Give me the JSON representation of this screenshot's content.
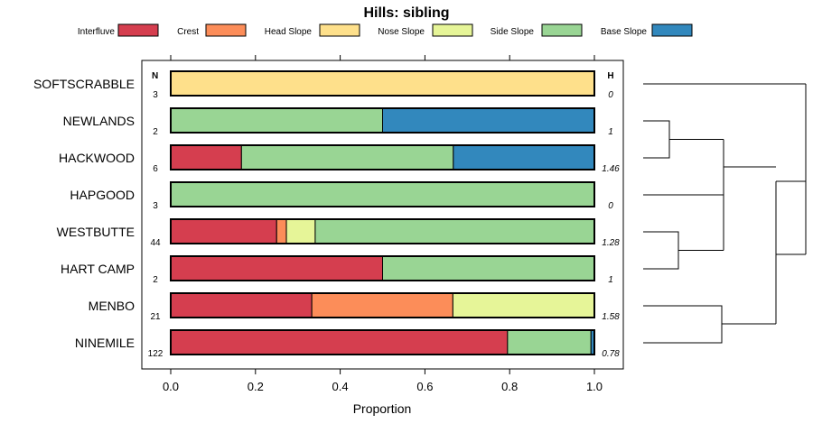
{
  "chart_data": {
    "type": "bar",
    "orientation": "horizontal",
    "stacked": true,
    "title": "Hills: sibling",
    "xlabel": "Proportion",
    "ylabel": "",
    "xlim": [
      0,
      1
    ],
    "xticks": [
      0.0,
      0.2,
      0.4,
      0.6,
      0.8,
      1.0
    ],
    "xtick_labels": [
      "0.0",
      "0.2",
      "0.4",
      "0.6",
      "0.8",
      "1.0"
    ],
    "n_header": "N",
    "h_header": "H",
    "legend_position": "top",
    "legend": [
      {
        "name": "Interfluve",
        "color": "#D53E4F"
      },
      {
        "name": "Crest",
        "color": "#FC8D59"
      },
      {
        "name": "Head Slope",
        "color": "#FEE08B"
      },
      {
        "name": "Nose Slope",
        "color": "#E6F598"
      },
      {
        "name": "Side Slope",
        "color": "#99D594"
      },
      {
        "name": "Base Slope",
        "color": "#3288BD"
      }
    ],
    "categories": [
      "SOFTSCRABBLE",
      "NEWLANDS",
      "HACKWOOD",
      "HAPGOOD",
      "WESTBUTTE",
      "HART CAMP",
      "MENBO",
      "NINEMILE"
    ],
    "n": [
      "3",
      "2",
      "6",
      "3",
      "44",
      "2",
      "21",
      "122"
    ],
    "h": [
      "0",
      "1",
      "1.46",
      "0",
      "1.28",
      "1",
      "1.58",
      "0.78"
    ],
    "series": [
      {
        "name": "Interfluve",
        "values": [
          0,
          0,
          0.167,
          0,
          0.25,
          0.5,
          0.333,
          0.795
        ]
      },
      {
        "name": "Crest",
        "values": [
          0,
          0,
          0,
          0,
          0.023,
          0,
          0.333,
          0
        ]
      },
      {
        "name": "Head Slope",
        "values": [
          1.0,
          0,
          0,
          0,
          0,
          0,
          0,
          0
        ]
      },
      {
        "name": "Nose Slope",
        "values": [
          0,
          0,
          0,
          0,
          0.068,
          0,
          0.334,
          0
        ]
      },
      {
        "name": "Side Slope",
        "values": [
          0,
          0.5,
          0.5,
          1.0,
          0.659,
          0.5,
          0,
          0.197
        ]
      },
      {
        "name": "Base Slope",
        "values": [
          0,
          0.5,
          0.333,
          0,
          0,
          0,
          0,
          0.008
        ]
      }
    ],
    "dendrogram": {
      "description": "hierarchical clustering of categories",
      "leaves": [
        "SOFTSCRABBLE",
        "NEWLANDS",
        "HACKWOOD",
        "HAPGOOD",
        "WESTBUTTE",
        "HART CAMP",
        "MENBO",
        "NINEMILE"
      ],
      "merges": [
        {
          "a": "NEWLANDS",
          "b": "HACKWOOD",
          "height": 0.15
        },
        {
          "a": "WESTBUTTE",
          "b": "HART CAMP",
          "height": 0.2
        },
        {
          "a": "MENBO",
          "b": "NINEMILE",
          "height": 0.45
        },
        {
          "a": "NEWLANDS+HACKWOOD",
          "b": "HAPGOOD",
          "height": 0.5
        },
        {
          "a": "NEWLANDS+HACKWOOD+HAPGOOD",
          "b": "WESTBUTTE+HART CAMP",
          "height": 0.55
        },
        {
          "a": "SOFTSCRABBLE",
          "b": "NEWLANDS+HACKWOOD+HAPGOOD+WESTBUTTE+HART CAMP",
          "height": 1.0
        },
        {
          "a": "MENBO+NINEMILE",
          "b": "SOFTSCRABBLE+NEWLANDS+HACKWOOD+HAPGOOD+WESTBUTTE+HART CAMP",
          "height": 0.75
        }
      ]
    }
  }
}
